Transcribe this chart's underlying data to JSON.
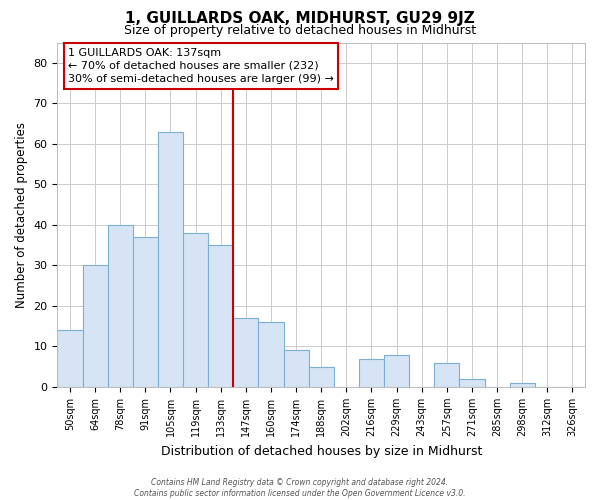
{
  "title": "1, GUILLARDS OAK, MIDHURST, GU29 9JZ",
  "subtitle": "Size of property relative to detached houses in Midhurst",
  "xlabel": "Distribution of detached houses by size in Midhurst",
  "ylabel": "Number of detached properties",
  "bar_labels": [
    "50sqm",
    "64sqm",
    "78sqm",
    "91sqm",
    "105sqm",
    "119sqm",
    "133sqm",
    "147sqm",
    "160sqm",
    "174sqm",
    "188sqm",
    "202sqm",
    "216sqm",
    "229sqm",
    "243sqm",
    "257sqm",
    "271sqm",
    "285sqm",
    "298sqm",
    "312sqm",
    "326sqm"
  ],
  "bar_heights": [
    14,
    30,
    40,
    37,
    63,
    38,
    35,
    17,
    16,
    9,
    5,
    0,
    7,
    8,
    0,
    6,
    2,
    0,
    1,
    0,
    0
  ],
  "bar_color": "#d6e4f5",
  "bar_edge_color": "#7bafd4",
  "ylim": [
    0,
    85
  ],
  "yticks": [
    0,
    10,
    20,
    30,
    40,
    50,
    60,
    70,
    80
  ],
  "vline_x_index": 6,
  "vline_color": "#cc0000",
  "annotation_title": "1 GUILLARDS OAK: 137sqm",
  "annotation_line1": "← 70% of detached houses are smaller (232)",
  "annotation_line2": "30% of semi-detached houses are larger (99) →",
  "footer1": "Contains HM Land Registry data © Crown copyright and database right 2024.",
  "footer2": "Contains public sector information licensed under the Open Government Licence v3.0.",
  "background_color": "#ffffff",
  "grid_color": "#cccccc"
}
